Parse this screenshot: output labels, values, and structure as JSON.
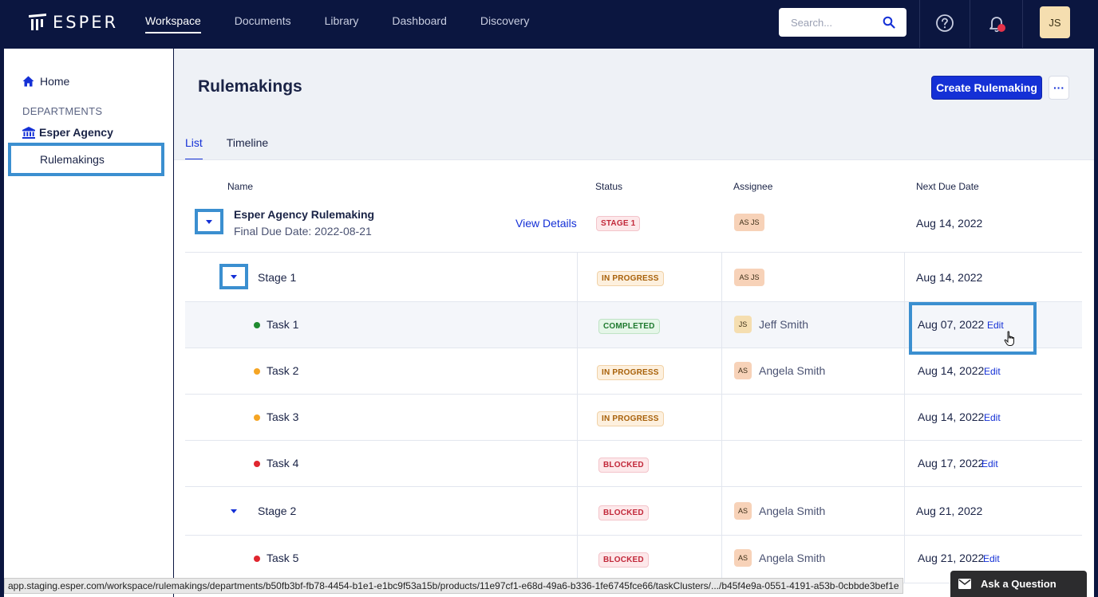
{
  "brand": {
    "name": "ESPER"
  },
  "nav": {
    "items": [
      {
        "label": "Workspace",
        "active": true
      },
      {
        "label": "Documents"
      },
      {
        "label": "Library"
      },
      {
        "label": "Dashboard"
      },
      {
        "label": "Discovery"
      }
    ],
    "search_placeholder": "Search...",
    "user_initials": "JS"
  },
  "sidebar": {
    "home": "Home",
    "section": "DEPARTMENTS",
    "agency": "Esper Agency",
    "selected": "Rulemakings"
  },
  "page": {
    "title": "Rulemakings",
    "create_button": "Create Rulemaking",
    "more_button": "···",
    "tabs": [
      {
        "label": "List",
        "active": true
      },
      {
        "label": "Timeline"
      }
    ]
  },
  "table": {
    "headers": {
      "name": "Name",
      "status": "Status",
      "assignee": "Assignee",
      "due": "Next Due Date"
    },
    "parent": {
      "name": "Esper Agency Rulemaking",
      "final_due": "Final Due Date: 2022-08-21",
      "view_details": "View Details",
      "status": "STAGE 1",
      "assignees": "AS JS",
      "due": "Aug 14, 2022"
    },
    "rows": [
      {
        "name": "Stage 1",
        "status": "IN PROGRESS",
        "assignee_initials": "AS JS",
        "assignee_name": "",
        "due": "Aug 14, 2022",
        "edit": ""
      },
      {
        "name": "Task 1",
        "status": "COMPLETED",
        "assignee_initials": "JS",
        "assignee_name": "Jeff Smith",
        "due": "Aug 07, 2022",
        "edit": "Edit"
      },
      {
        "name": "Task 2",
        "status": "IN PROGRESS",
        "assignee_initials": "AS",
        "assignee_name": "Angela Smith",
        "due": "Aug 14, 2022",
        "edit": "Edit"
      },
      {
        "name": "Task 3",
        "status": "IN PROGRESS",
        "assignee_initials": "",
        "assignee_name": "",
        "due": "Aug 14, 2022",
        "edit": "Edit"
      },
      {
        "name": "Task 4",
        "status": "BLOCKED",
        "assignee_initials": "",
        "assignee_name": "",
        "due": "Aug 17, 2022",
        "edit": "Edit"
      },
      {
        "name": "Stage 2",
        "status": "BLOCKED",
        "assignee_initials": "AS",
        "assignee_name": "Angela Smith",
        "due": "Aug 21, 2022",
        "edit": ""
      },
      {
        "name": "Task 5",
        "status": "BLOCKED",
        "assignee_initials": "AS",
        "assignee_name": "Angela Smith",
        "due": "Aug 21, 2022",
        "edit": "Edit"
      }
    ]
  },
  "colors": {
    "accent": "#1430d6",
    "navy": "#0b1640",
    "highlight": "#3b8fd0",
    "green": "#1f8a2f",
    "orange": "#f5a524",
    "red": "#e0262f"
  },
  "statusbar": {
    "url": "app.staging.esper.com/workspace/rulemakings/departments/b50fb3bf-fb78-4454-b1e1-e1bc9f53a15b/products/11e97cf1-e68d-49a6-b336-1fe6745fce66/taskClusters/.../b45f4e9a-0551-4191-a53b-0cbbde3bef1e"
  },
  "help": {
    "label": "Ask a Question"
  }
}
